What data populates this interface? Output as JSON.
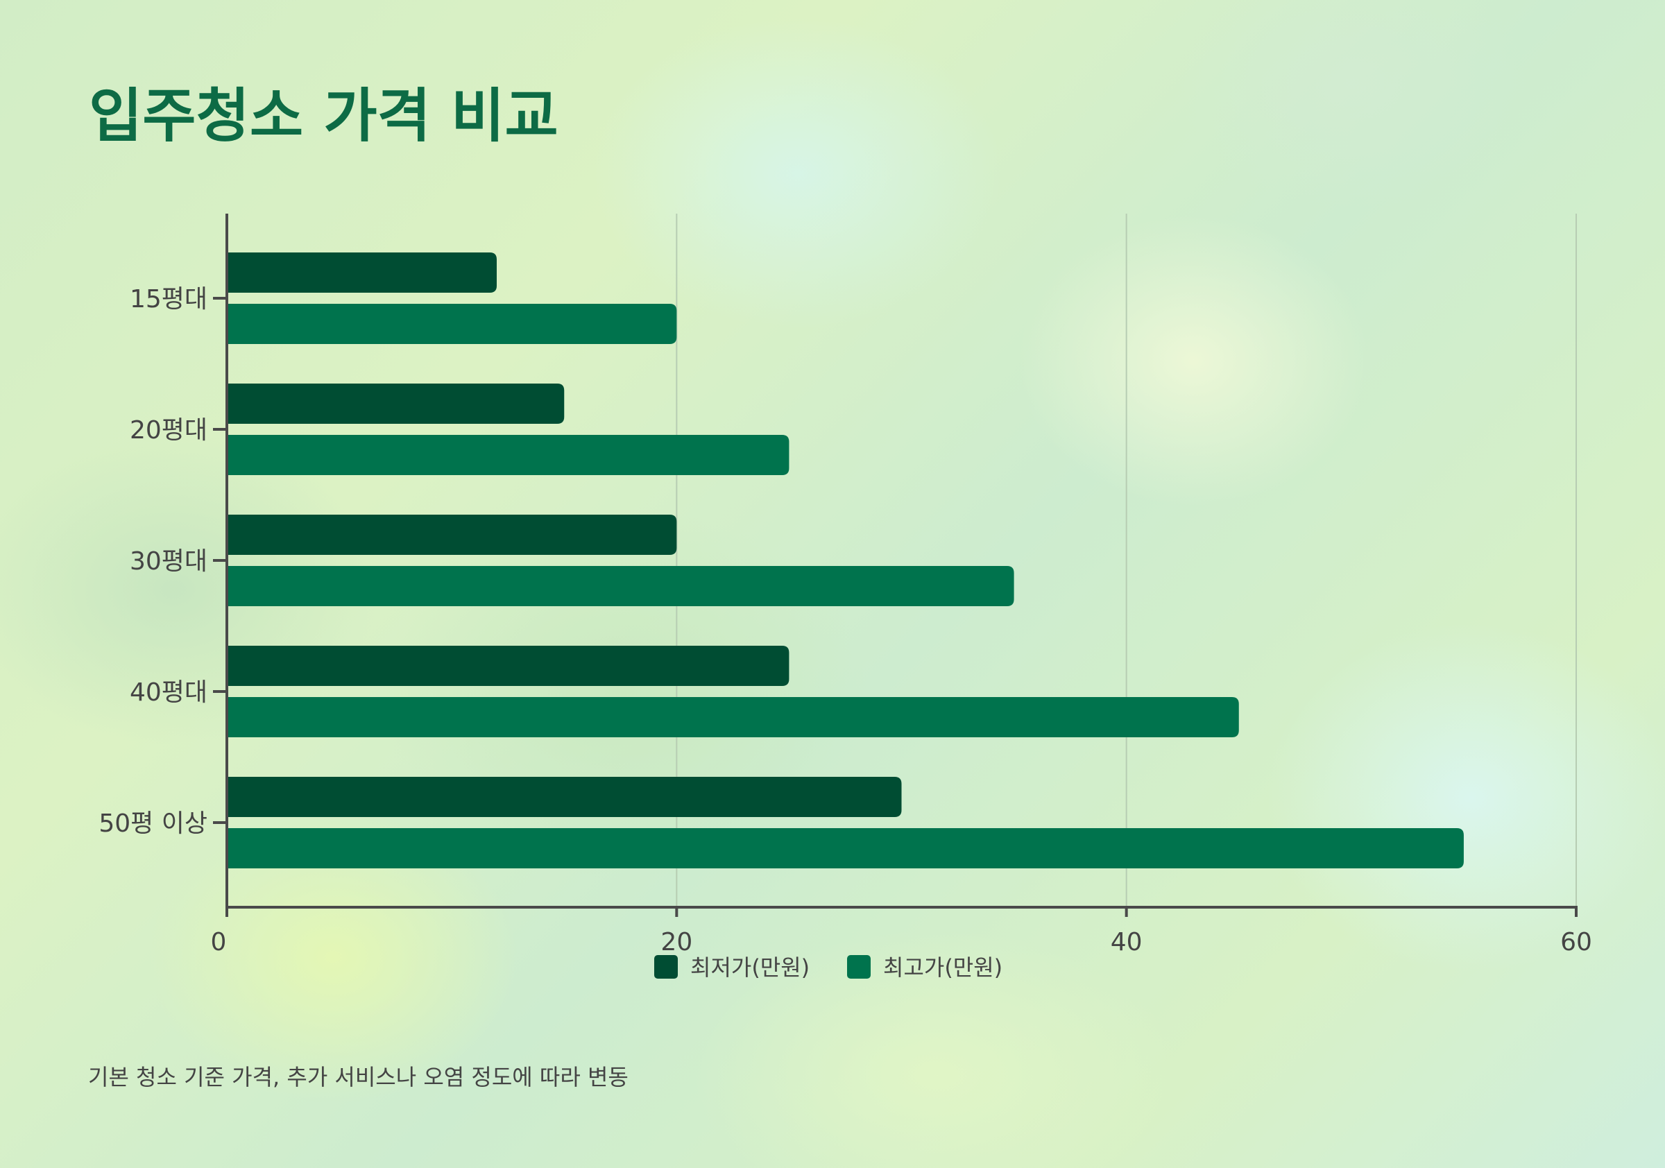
{
  "title": "입주청소 가격 비교",
  "footnote": "기본 청소 기준 가격, 추가 서비스나 오염 정도에 따라 변동",
  "colors": {
    "title": "#0d6b45",
    "series_min": "#004d33",
    "series_max": "#00734d",
    "axis": "#4a4a4a",
    "grid": "#b7cdb3",
    "text": "#444444"
  },
  "chart_data": {
    "type": "bar",
    "orientation": "horizontal",
    "title": "입주청소 가격 비교",
    "categories": [
      "15평대",
      "20평대",
      "30평대",
      "40평대",
      "50평 이상"
    ],
    "series": [
      {
        "name": "최저가(만원)",
        "values": [
          12,
          15,
          20,
          25,
          30
        ]
      },
      {
        "name": "최고가(만원)",
        "values": [
          20,
          25,
          35,
          45,
          55
        ]
      }
    ],
    "xlim": [
      0,
      60
    ],
    "xticks": [
      0,
      20,
      40,
      60
    ],
    "xlabel": "",
    "ylabel": "",
    "grid": "vertical",
    "legend_position": "bottom"
  }
}
